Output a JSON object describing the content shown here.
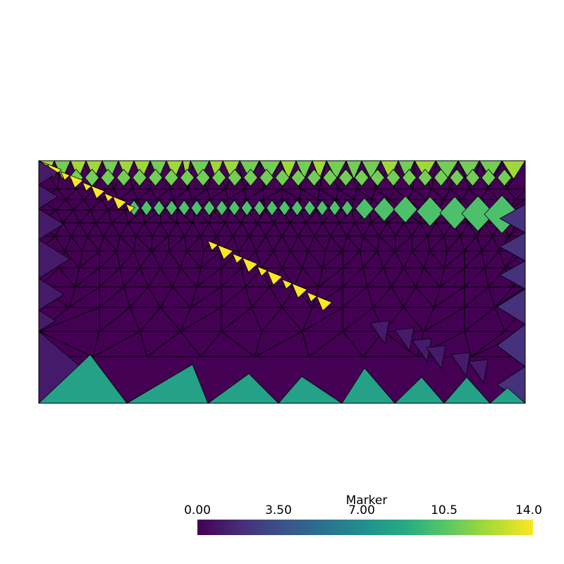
{
  "legend": {
    "title": "Marker",
    "ticks": [
      "0.00",
      "3.50",
      "7.00",
      "10.5",
      "14.0"
    ],
    "range": [
      0,
      14
    ],
    "colormap": [
      "#440154",
      "#472c7a",
      "#3b518b",
      "#2c718e",
      "#21908d",
      "#27ad81",
      "#5cc863",
      "#aadc32",
      "#fde725"
    ]
  },
  "mesh": {
    "marker_values": {
      "interior": 0,
      "left_boundary": 1,
      "right_boundary": 2,
      "bottom_boundary": 8,
      "upper_layer_a": 10,
      "upper_layer_b": 11,
      "top_boundary": 12,
      "fault": 14
    },
    "edge_color": "#000000"
  }
}
